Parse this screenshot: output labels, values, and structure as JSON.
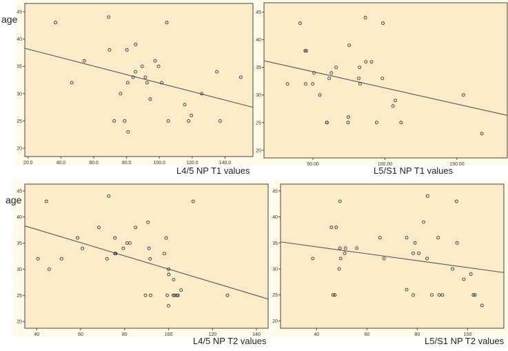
{
  "chart_data": [
    {
      "type": "scatter",
      "title": "",
      "xlabel": "L4/5 NP  T1 values",
      "ylabel": "age",
      "xlim": [
        18,
        157
      ],
      "ylim": [
        18.5,
        46.5
      ],
      "xticks": [
        20,
        40,
        60,
        80,
        100,
        120,
        140
      ],
      "xtick_labels": [
        "20.0",
        "40.0",
        "60.0",
        "80.0",
        "100.0",
        "120.0",
        "140.0"
      ],
      "yticks": [
        20,
        25,
        30,
        35,
        40,
        45
      ],
      "ytick_labels": [
        "20",
        "25",
        "30",
        "35",
        "40",
        "45"
      ],
      "grid": false,
      "fit_line": {
        "x": [
          18,
          157
        ],
        "y": [
          38.3,
          27.5
        ]
      },
      "points": [
        [
          36.7,
          43
        ],
        [
          46.6,
          32
        ],
        [
          54.2,
          36
        ],
        [
          69.1,
          44
        ],
        [
          69.6,
          38
        ],
        [
          72.5,
          25
        ],
        [
          76.3,
          30
        ],
        [
          78.8,
          25
        ],
        [
          80.2,
          38
        ],
        [
          80.7,
          32
        ],
        [
          80.9,
          23
        ],
        [
          84,
          33
        ],
        [
          85.4,
          34
        ],
        [
          85.5,
          39
        ],
        [
          89.5,
          35
        ],
        [
          91.5,
          33
        ],
        [
          92.5,
          32
        ],
        [
          94.4,
          29
        ],
        [
          97.4,
          36
        ],
        [
          99.5,
          35
        ],
        [
          101.4,
          32
        ],
        [
          104.5,
          43
        ],
        [
          105.4,
          25
        ],
        [
          115.4,
          28
        ],
        [
          117.8,
          25
        ],
        [
          119.5,
          26
        ],
        [
          125.8,
          30
        ],
        [
          135,
          34
        ],
        [
          137,
          25
        ],
        [
          149.6,
          33
        ]
      ]
    },
    {
      "type": "scatter",
      "title": "",
      "xlabel": "L5/S1 NP T1 values",
      "ylabel": "",
      "xlim": [
        16,
        185
      ],
      "ylim": [
        18.6,
        46.7
      ],
      "xticks": [
        50,
        100,
        150
      ],
      "xtick_labels": [
        "50.00",
        "100.00",
        "150.00"
      ],
      "yticks": [
        20,
        25,
        30,
        35,
        40,
        45
      ],
      "ytick_labels": [
        "20",
        "25",
        "30",
        "35",
        "40",
        "45"
      ],
      "grid": false,
      "fit_line": {
        "x": [
          16,
          185
        ],
        "y": [
          36.2,
          26.3
        ]
      },
      "points": [
        [
          32.3,
          32
        ],
        [
          41.1,
          43
        ],
        [
          44.6,
          38
        ],
        [
          45.4,
          38
        ],
        [
          44.9,
          32
        ],
        [
          49.8,
          32
        ],
        [
          50.8,
          34
        ],
        [
          54.8,
          30
        ],
        [
          59.6,
          25
        ],
        [
          59.8,
          25
        ],
        [
          61.3,
          33
        ],
        [
          62.8,
          34
        ],
        [
          66.1,
          35
        ],
        [
          74.6,
          26
        ],
        [
          74.4,
          25
        ],
        [
          75.2,
          39
        ],
        [
          81.8,
          33
        ],
        [
          82.4,
          35
        ],
        [
          82.7,
          32
        ],
        [
          86.4,
          44
        ],
        [
          86.7,
          36
        ],
        [
          90.7,
          36
        ],
        [
          94.2,
          25
        ],
        [
          98.2,
          33
        ],
        [
          98.6,
          43
        ],
        [
          105.6,
          28
        ],
        [
          107.3,
          29
        ],
        [
          111.2,
          25
        ],
        [
          154.5,
          30
        ],
        [
          167.3,
          23
        ]
      ]
    },
    {
      "type": "scatter",
      "title": "",
      "xlabel": "L4/5 NP  T2 values",
      "ylabel": "age",
      "xlim": [
        34.6,
        145.3
      ],
      "ylim": [
        18.7,
        46.3
      ],
      "xticks": [
        40,
        60,
        80,
        100,
        120,
        140
      ],
      "xtick_labels": [
        "40",
        "60",
        "80",
        "100",
        "120",
        "140"
      ],
      "yticks": [
        20,
        25,
        30,
        35,
        40,
        45
      ],
      "ytick_labels": [
        "20",
        "25",
        "30",
        "35",
        "40",
        "45"
      ],
      "grid": false,
      "fit_line": {
        "x": [
          34.6,
          145.3
        ],
        "y": [
          38.3,
          24.3
        ]
      },
      "points": [
        [
          40.6,
          32
        ],
        [
          44.4,
          43
        ],
        [
          45.7,
          30
        ],
        [
          51.3,
          32
        ],
        [
          58.6,
          36
        ],
        [
          60.8,
          34
        ],
        [
          68.3,
          38
        ],
        [
          72,
          32
        ],
        [
          72.8,
          44
        ],
        [
          75.6,
          36
        ],
        [
          75.6,
          33
        ],
        [
          76,
          33
        ],
        [
          79.4,
          34
        ],
        [
          81.1,
          35
        ],
        [
          82.4,
          35
        ],
        [
          85,
          38
        ],
        [
          89.5,
          25
        ],
        [
          90.6,
          39
        ],
        [
          91.1,
          34
        ],
        [
          91.6,
          32
        ],
        [
          91.8,
          25
        ],
        [
          98.1,
          33
        ],
        [
          98.9,
          36
        ],
        [
          99.4,
          25
        ],
        [
          100,
          30
        ],
        [
          100.1,
          29
        ],
        [
          100,
          23
        ],
        [
          102.3,
          28
        ],
        [
          102.2,
          25
        ],
        [
          102.7,
          25
        ],
        [
          103.8,
          25
        ],
        [
          104.3,
          25
        ],
        [
          105.7,
          26
        ],
        [
          111.2,
          43
        ],
        [
          126.8,
          25
        ]
      ]
    },
    {
      "type": "scatter",
      "title": "",
      "xlabel": "L5/S1 NP T2 values",
      "ylabel": "",
      "xlim": [
        25.7,
        114.4
      ],
      "ylim": [
        18.6,
        46.3
      ],
      "xticks": [
        40,
        60,
        80,
        100
      ],
      "xtick_labels": [
        "40",
        "60",
        "80",
        "100"
      ],
      "yticks": [
        20,
        25,
        30,
        35,
        40,
        45
      ],
      "ytick_labels": [
        "20",
        "25",
        "30",
        "35",
        "40",
        "45"
      ],
      "grid": false,
      "fit_line": {
        "x": [
          25.7,
          114.4
        ],
        "y": [
          35.2,
          29.3
        ]
      },
      "points": [
        [
          38.5,
          32
        ],
        [
          45.9,
          38
        ],
        [
          46.6,
          25
        ],
        [
          47.3,
          25
        ],
        [
          47.8,
          38
        ],
        [
          49,
          30
        ],
        [
          49.3,
          43
        ],
        [
          49.3,
          34
        ],
        [
          49.6,
          32
        ],
        [
          51.2,
          33
        ],
        [
          51.5,
          34
        ],
        [
          56,
          34
        ],
        [
          65.2,
          36
        ],
        [
          66.8,
          32
        ],
        [
          75.8,
          36
        ],
        [
          75.8,
          26
        ],
        [
          78.4,
          25
        ],
        [
          78.4,
          33
        ],
        [
          79.1,
          35
        ],
        [
          80.6,
          33
        ],
        [
          82.5,
          39
        ],
        [
          83.9,
          32
        ],
        [
          84.1,
          44
        ],
        [
          85.8,
          25
        ],
        [
          88.3,
          36
        ],
        [
          88.7,
          25
        ],
        [
          90,
          25
        ],
        [
          94,
          30
        ],
        [
          95.6,
          43
        ],
        [
          95.8,
          35
        ],
        [
          98.5,
          28
        ],
        [
          101.3,
          29
        ],
        [
          102.3,
          25
        ],
        [
          102.9,
          25
        ],
        [
          105.7,
          23
        ]
      ]
    }
  ],
  "colors": {
    "plot_bg": "#fcebc9",
    "outer_bg": "#fffbe8",
    "ink": "#555555"
  }
}
